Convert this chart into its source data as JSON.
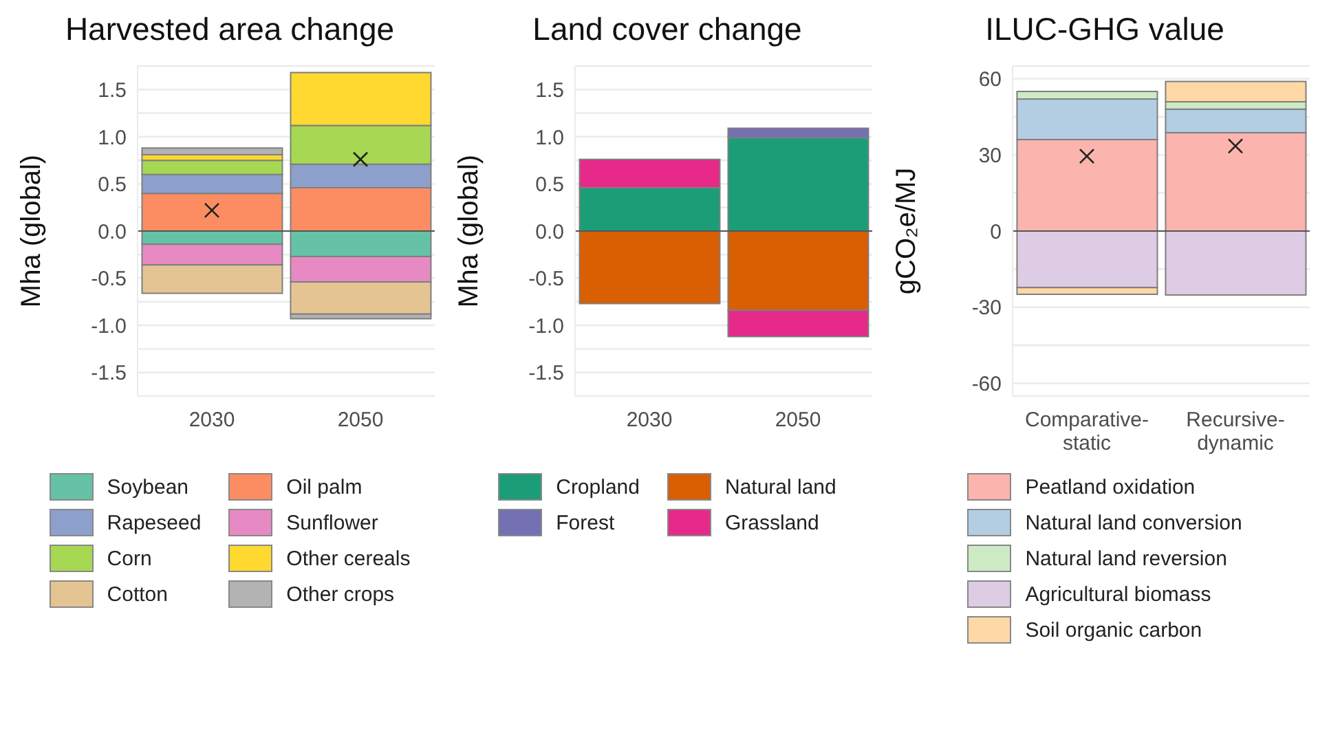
{
  "chart_data": [
    {
      "type": "bar",
      "title": "Harvested area change",
      "ylabel": "Mha (global)",
      "categories": [
        "2030",
        "2050"
      ],
      "stacked": true,
      "grid": "y",
      "legend": "bottom",
      "ylim": [
        -1.75,
        1.75
      ],
      "yticks": [
        {
          "value": -1.75,
          "label": null
        },
        {
          "value": -1.5,
          "label": "-1.5"
        },
        {
          "value": -1.25,
          "label": null
        },
        {
          "value": -1,
          "label": "-1.0"
        },
        {
          "value": -0.75,
          "label": null
        },
        {
          "value": -0.5,
          "label": "-0.5"
        },
        {
          "value": -0.25,
          "label": null
        },
        {
          "value": 0,
          "label": "0.0"
        },
        {
          "value": 0.25,
          "label": null
        },
        {
          "value": 0.5,
          "label": "0.5"
        },
        {
          "value": 0.75,
          "label": null
        },
        {
          "value": 1,
          "label": "1.0"
        },
        {
          "value": 1.25,
          "label": null
        },
        {
          "value": 1.5,
          "label": "1.5"
        },
        {
          "value": 1.75,
          "label": null
        }
      ],
      "ref_lines": [
        {
          "axis": "y",
          "value": 0,
          "color": "#555555"
        }
      ],
      "series": [
        {
          "name": "Soybean",
          "color": "#66c2a5",
          "values": [
            -0.14,
            -0.27
          ]
        },
        {
          "name": "Oil palm",
          "color": "#fc8d62",
          "values": [
            0.4,
            0.46
          ]
        },
        {
          "name": "Rapeseed",
          "color": "#8da0cb",
          "values": [
            0.2,
            0.25
          ]
        },
        {
          "name": "Sunflower",
          "color": "#e78ac3",
          "values": [
            -0.22,
            -0.27
          ]
        },
        {
          "name": "Corn",
          "color": "#a6d854",
          "values": [
            0.15,
            0.41
          ]
        },
        {
          "name": "Other cereals",
          "color": "#ffd92f",
          "values": [
            0.06,
            0.56
          ]
        },
        {
          "name": "Cotton",
          "color": "#e5c494",
          "values": [
            -0.3,
            -0.34
          ]
        },
        {
          "name": "Other crops",
          "color": "#b3b3b3",
          "values": [
            0.07,
            -0.05
          ]
        },
        {
          "type": "scatter",
          "color": "#222222",
          "marker": "cross",
          "values": [
            0.22,
            0.76
          ]
        }
      ]
    },
    {
      "type": "bar",
      "title": "Land cover change",
      "ylabel": "Mha (global)",
      "categories": [
        "2030",
        "2050"
      ],
      "stacked": true,
      "grid": "y",
      "legend": "bottom",
      "ylim": [
        -1.75,
        1.75
      ],
      "yticks": [
        {
          "value": -1.75,
          "label": null
        },
        {
          "value": -1.5,
          "label": "-1.5"
        },
        {
          "value": -1.25,
          "label": null
        },
        {
          "value": -1,
          "label": "-1.0"
        },
        {
          "value": -0.75,
          "label": null
        },
        {
          "value": -0.5,
          "label": "-0.5"
        },
        {
          "value": -0.25,
          "label": null
        },
        {
          "value": 0,
          "label": "0.0"
        },
        {
          "value": 0.25,
          "label": null
        },
        {
          "value": 0.5,
          "label": "0.5"
        },
        {
          "value": 0.75,
          "label": null
        },
        {
          "value": 1,
          "label": "1.0"
        },
        {
          "value": 1.25,
          "label": null
        },
        {
          "value": 1.5,
          "label": "1.5"
        },
        {
          "value": 1.75,
          "label": null
        }
      ],
      "ref_lines": [
        {
          "axis": "y",
          "value": 0,
          "color": "#555555"
        }
      ],
      "series": [
        {
          "name": "Cropland",
          "color": "#1b9e77",
          "values": [
            0.46,
            0.99
          ]
        },
        {
          "name": "Natural land",
          "color": "#d95f02",
          "values": [
            -0.77,
            -0.84
          ]
        },
        {
          "name": "Forest",
          "color": "#7570b3",
          "values": [
            null,
            0.1
          ]
        },
        {
          "name": "Grassland",
          "color": "#e7298a",
          "values": [
            0.3,
            -0.28
          ]
        }
      ]
    },
    {
      "type": "bar",
      "title": "ILUC-GHG value",
      "ylabel": "gCO₂e/MJ",
      "categories": [
        "Comparative-static",
        "Recursive-dynamic"
      ],
      "stacked": true,
      "grid": "y",
      "legend": "bottom",
      "ylim": [
        -65,
        65
      ],
      "yticks": [
        -60,
        {
          "value": -45,
          "label": null
        },
        -30,
        {
          "value": -15,
          "label": null
        },
        0,
        {
          "value": 15,
          "label": null
        },
        30,
        {
          "value": 45,
          "label": null
        },
        60
      ],
      "ref_lines": [
        {
          "axis": "y",
          "value": 0,
          "color": "#555555"
        }
      ],
      "series": [
        {
          "name": "Peatland oxidation",
          "color": "#fbb4ae",
          "values": [
            36,
            38.7
          ]
        },
        {
          "name": "Natural land conversion",
          "color": "#b3cde3",
          "values": [
            16,
            9.3
          ]
        },
        {
          "name": "Natural land reversion",
          "color": "#ccebc5",
          "values": [
            3,
            2.9
          ]
        },
        {
          "name": "Agricultural biomass",
          "color": "#decbe4",
          "values": [
            -22.3,
            -25.2
          ]
        },
        {
          "name": "Soil organic carbon",
          "color": "#fed9a6",
          "values": [
            -2.6,
            8
          ]
        },
        {
          "type": "scatter",
          "color": "#222222",
          "marker": "cross",
          "x": [
            "Comparative-static",
            "Recursive-dynamic"
          ],
          "values": [
            29.5,
            33.5
          ]
        }
      ]
    }
  ]
}
